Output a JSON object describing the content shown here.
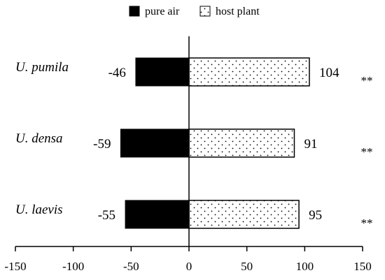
{
  "chart_data": {
    "type": "bar",
    "orientation": "horizontal",
    "diverging": true,
    "categories": [
      "U. pumila",
      "U. densa",
      "U. laevis"
    ],
    "series": [
      {
        "name": "pure air",
        "color": "#000000",
        "pattern": "solid",
        "values": [
          -46,
          -59,
          -55
        ]
      },
      {
        "name": "host plant",
        "color": "#ffffff",
        "pattern": "dots",
        "values": [
          104,
          91,
          95
        ]
      }
    ],
    "data_labels": {
      "pure air": [
        "-46",
        "-59",
        "-55"
      ],
      "host plant": [
        "104",
        "91",
        "95"
      ]
    },
    "significance": [
      "**",
      "**",
      "**"
    ],
    "xlim": [
      -150,
      150
    ],
    "xticks": [
      -150,
      -100,
      -50,
      0,
      50,
      100,
      150
    ],
    "title": "",
    "xlabel": "",
    "ylabel": "",
    "legend_position": "top-center",
    "grid": false
  }
}
